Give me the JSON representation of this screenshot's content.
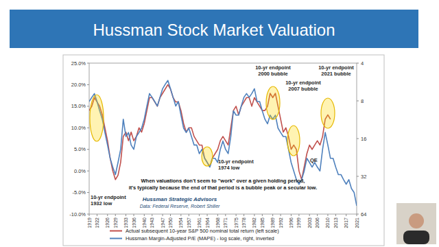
{
  "chart_data": {
    "type": "line",
    "title": "Hussman Stock Market Valuation",
    "x": [
      1919,
      1920,
      1921,
      1922,
      1923,
      1924,
      1925,
      1926,
      1927,
      1928,
      1929,
      1930,
      1931,
      1932,
      1933,
      1934,
      1935,
      1936,
      1937,
      1938,
      1939,
      1940,
      1941,
      1942,
      1943,
      1944,
      1945,
      1946,
      1947,
      1948,
      1949,
      1950,
      1951,
      1952,
      1953,
      1954,
      1955,
      1956,
      1957,
      1958,
      1959,
      1960,
      1961,
      1962,
      1963,
      1964,
      1965,
      1966,
      1967,
      1968,
      1969,
      1970,
      1971,
      1972,
      1973,
      1974,
      1975,
      1976,
      1977,
      1978,
      1979,
      1980,
      1981,
      1982,
      1983,
      1984,
      1985,
      1986,
      1987,
      1988,
      1989,
      1990,
      1991,
      1992,
      1993,
      1994,
      1995,
      1996,
      1997,
      1998,
      1999,
      2000,
      2001,
      2002,
      2003,
      2004,
      2005,
      2006,
      2007,
      2008,
      2009,
      2010,
      2011,
      2012,
      2013,
      2014,
      2015,
      2016,
      2017,
      2018,
      2019,
      2020,
      2021
    ],
    "xlim": [
      1919,
      2021
    ],
    "xticks": [
      1919,
      1922,
      1926,
      1929,
      1933,
      1936,
      1940,
      1943,
      1947,
      1950,
      1954,
      1957,
      1961,
      1964,
      1968,
      1971,
      1975,
      1978,
      1982,
      1985,
      1989,
      1992,
      1996,
      1999,
      2003,
      2006,
      2010,
      2013,
      2017,
      2021
    ],
    "ylim": [
      -10,
      25
    ],
    "yticks": [
      {
        "value": -10,
        "label": "-10.0%"
      },
      {
        "value": -5,
        "label": "-5.0%"
      },
      {
        "value": 0,
        "label": "0.0%"
      },
      {
        "value": 5,
        "label": "5.0%"
      },
      {
        "value": 10,
        "label": "10.0%"
      },
      {
        "value": 15,
        "label": "15.0%"
      },
      {
        "value": 20,
        "label": "20.0%"
      },
      {
        "value": 25,
        "label": "25.0%"
      }
    ],
    "y2lim": [
      64,
      4
    ],
    "y2ticks": [
      4,
      8,
      16,
      32,
      64
    ],
    "log": "y2",
    "grid": false,
    "legend": "bottom",
    "series": [
      {
        "name": "Actual subsequent 10-year S&P 500 nominal total return (left scale)",
        "color": "#c0504d",
        "values": [
          14,
          15,
          17,
          16,
          15,
          13,
          10,
          7,
          3,
          0,
          -2,
          -1,
          2,
          8,
          9,
          7,
          9,
          7,
          8,
          10,
          9,
          11,
          14,
          17,
          17,
          16,
          15,
          17,
          18,
          19,
          20,
          19,
          17,
          16,
          16,
          14,
          11,
          9,
          10,
          10,
          8,
          7,
          6,
          6,
          3,
          2,
          1,
          3,
          4,
          5,
          7,
          8,
          7,
          6,
          10,
          14,
          15,
          13,
          15,
          16,
          17,
          17,
          15,
          17,
          16,
          15,
          14,
          14,
          15,
          18,
          17,
          18,
          15,
          12,
          9,
          10,
          8,
          5,
          6,
          5,
          0,
          -2,
          1,
          4,
          6,
          5,
          6,
          7,
          6,
          8,
          12,
          13,
          12,
          null,
          null,
          null,
          null,
          null,
          null,
          null,
          null,
          null,
          null
        ]
      },
      {
        "name": "Hussman Margin-Adjusted P/E (MAPE) - log scale, right, inverted",
        "color": "#4f81bd",
        "axis": "y2",
        "values": [
          8.1,
          7.5,
          7.0,
          8.1,
          9.6,
          11.2,
          14.3,
          18,
          23,
          27,
          31,
          24.8,
          19.5,
          11.2,
          15.4,
          14.3,
          18,
          19.5,
          15.4,
          14.3,
          13.2,
          11.2,
          8.8,
          7.0,
          7.5,
          8.1,
          8.8,
          7.5,
          6.4,
          5.9,
          5.5,
          6.4,
          7.5,
          8.8,
          8.1,
          10.4,
          13.2,
          14.3,
          13.2,
          15.4,
          18,
          18,
          21.1,
          19.5,
          23,
          24.8,
          27,
          23,
          23,
          24.8,
          19.5,
          16.7,
          19.5,
          21.1,
          15.4,
          9.6,
          10.4,
          10.4,
          8.8,
          7.5,
          7.0,
          7.5,
          7.0,
          6.4,
          8.1,
          8.1,
          9.6,
          11.2,
          12.2,
          10.4,
          11.2,
          10.4,
          13.2,
          14.3,
          15.4,
          15.4,
          19.5,
          24.8,
          29,
          34,
          37,
          34,
          29,
          23,
          24.8,
          27,
          24.8,
          27,
          29,
          19.5,
          14.3,
          18,
          23,
          23,
          27,
          31,
          31,
          34,
          37,
          34,
          40,
          43,
          55
        ]
      }
    ],
    "annotations": [
      {
        "lines": [
          "10-yr endpoint",
          "1932 low"
        ]
      },
      {
        "lines": [
          "10-yr endpoint",
          "1974 low"
        ]
      },
      {
        "lines": [
          "10-yr endpoint",
          "2000 bubble"
        ]
      },
      {
        "lines": [
          "10-yr endpoint",
          "2007 bubble"
        ]
      },
      {
        "lines": [
          "10-yr endpoint",
          "2021 bubble"
        ]
      },
      {
        "lines": [
          "QE"
        ]
      }
    ],
    "note": [
      "When valuations don't seem to \"work\" over a given holding period,",
      "it's typically because the end of that period is a bubble peak or a secular low."
    ],
    "source": [
      "Hussman Strategic Advisors",
      "Data: Federal Reserve, Robert Shiller"
    ]
  }
}
